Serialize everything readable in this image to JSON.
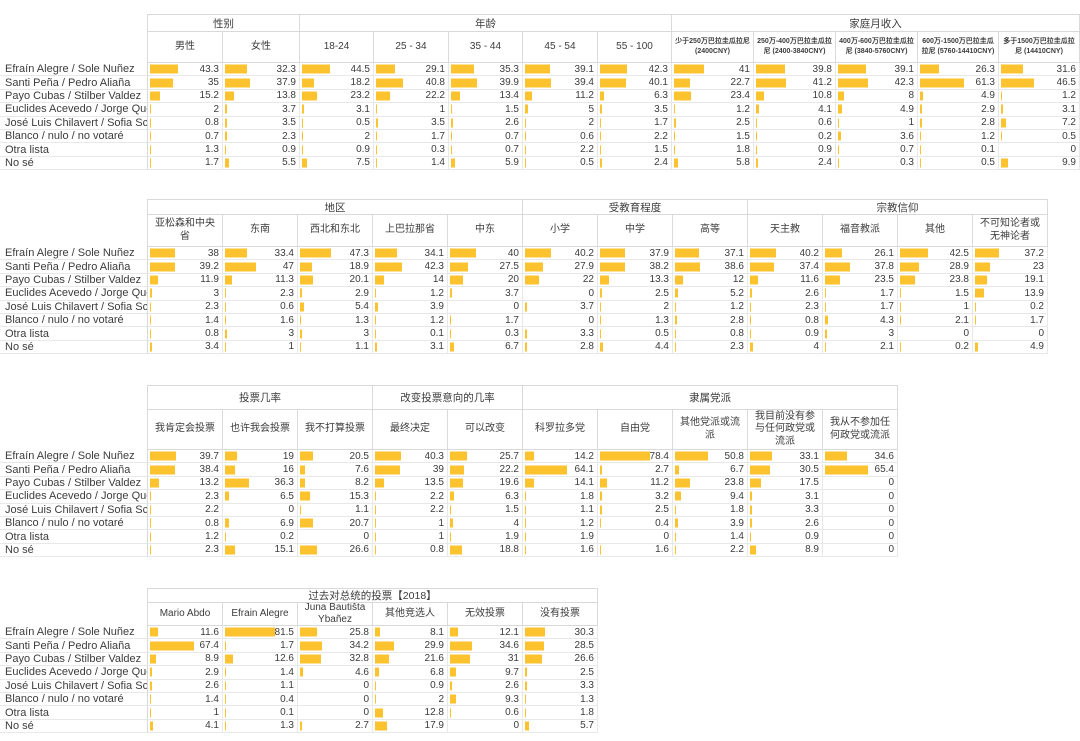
{
  "colors": {
    "bar": "#FDC32E",
    "header_grid": "#D9D9D9",
    "data_grid": "#E8E8E8",
    "text": "#3C3C3C"
  },
  "row_labels": [
    "Efraín Alegre / Sole Nuñez",
    "Santi Peña / Pedro Aliaña",
    "Payo Cubas / Stilber Valdez",
    "Euclides Acevedo / Jorge Querey",
    "José Luis Chilavert / Sofia Scheid",
    "Blanco / nulo / no votaré",
    "Otra lista",
    "No sé"
  ],
  "chart_data": [
    {
      "type": "table",
      "title": "性别 / 年龄 / 家庭月收入",
      "bar_scale_max": 100,
      "groups": [
        {
          "label": "性别",
          "columns": [
            "男性",
            "女性"
          ]
        },
        {
          "label": "年龄",
          "columns": [
            "18-24",
            "25 - 34",
            "35 - 44",
            "45 - 54",
            "55 - 100"
          ]
        },
        {
          "label": "家庭月收入",
          "columns": [
            "少于250万巴拉圭瓜拉尼 (2400CNY)",
            "250万-400万巴拉圭瓜拉尼 (2400-3840CNY)",
            "400万-600万巴拉圭瓜拉尼 (3840-5760CNY)",
            "600万-1500万巴拉圭瓜拉尼 (5760-14410CNY)",
            "多于1500万巴拉圭瓜拉尼 (14410CNY)"
          ]
        }
      ],
      "series": [
        {
          "name": "男性",
          "values": [
            43.3,
            35,
            15.2,
            2,
            0.8,
            0.7,
            1.3,
            1.7
          ]
        },
        {
          "name": "女性",
          "values": [
            32.3,
            37.9,
            13.8,
            3.7,
            3.5,
            2.3,
            0.9,
            5.5
          ]
        },
        {
          "name": "18-24",
          "values": [
            44.5,
            18.2,
            23.2,
            3.1,
            0.5,
            2,
            0.9,
            7.5
          ]
        },
        {
          "name": "25 - 34",
          "values": [
            29.1,
            40.8,
            22.2,
            1,
            3.5,
            1.7,
            0.3,
            1.4
          ]
        },
        {
          "name": "35 - 44",
          "values": [
            35.3,
            39.9,
            13.4,
            1.5,
            2.6,
            0.7,
            0.7,
            5.9
          ]
        },
        {
          "name": "45 - 54",
          "values": [
            39.1,
            39.4,
            11.2,
            5,
            2,
            0.6,
            2.2,
            0.5
          ]
        },
        {
          "name": "55 - 100",
          "values": [
            42.3,
            40.1,
            6.3,
            3.5,
            1.7,
            2.2,
            1.5,
            2.4
          ]
        },
        {
          "name": "少于250万巴拉圭瓜拉尼 (2400CNY)",
          "values": [
            41,
            22.7,
            23.4,
            1.2,
            2.5,
            1.5,
            1.8,
            5.8
          ]
        },
        {
          "name": "250万-400万巴拉圭瓜拉尼 (2400-3840CNY)",
          "values": [
            39.8,
            41.2,
            10.8,
            4.1,
            0.6,
            0.2,
            0.9,
            2.4
          ]
        },
        {
          "name": "400万-600万巴拉圭瓜拉尼 (3840-5760CNY)",
          "values": [
            39.1,
            42.3,
            8,
            4.9,
            1,
            3.6,
            0.7,
            0.3
          ]
        },
        {
          "name": "600万-1500万巴拉圭瓜拉尼 (5760-14410CNY)",
          "values": [
            26.3,
            61.3,
            4.9,
            2.9,
            2.8,
            1.2,
            0.1,
            0.5
          ]
        },
        {
          "name": "多于1500万巴拉圭瓜拉尼 (14410CNY)",
          "values": [
            31.6,
            46.5,
            1.2,
            3.1,
            7.2,
            0.5,
            0,
            9.9
          ]
        }
      ]
    },
    {
      "type": "table",
      "title": "地区 / 受教育程度 / 宗教信仰",
      "bar_scale_max": 100,
      "groups": [
        {
          "label": "地区",
          "columns": [
            "亚松森和中央省",
            "东南",
            "西北和东北",
            "上巴拉那省",
            "中东"
          ]
        },
        {
          "label": "受教育程度",
          "columns": [
            "小学",
            "中学",
            "高等"
          ]
        },
        {
          "label": "宗教信仰",
          "columns": [
            "天主教",
            "福音教派",
            "其他",
            "不可知论者或无神论者"
          ]
        }
      ],
      "series": [
        {
          "name": "亚松森和中央省",
          "values": [
            38,
            39.2,
            11.9,
            3,
            2.3,
            1.4,
            0.8,
            3.4
          ]
        },
        {
          "name": "东南",
          "values": [
            33.4,
            47,
            11.3,
            2.3,
            0.6,
            1.6,
            3,
            1
          ]
        },
        {
          "name": "西北和东北",
          "values": [
            47.3,
            18.9,
            20.1,
            2.9,
            5.4,
            1.3,
            3,
            1.1
          ]
        },
        {
          "name": "上巴拉那省",
          "values": [
            34.1,
            42.3,
            14,
            1.2,
            3.9,
            1.2,
            0.1,
            3.1
          ]
        },
        {
          "name": "中东",
          "values": [
            40,
            27.5,
            20,
            3.7,
            0,
            1.7,
            0.3,
            6.7
          ]
        },
        {
          "name": "小学",
          "values": [
            40.2,
            27.9,
            22,
            0,
            3.7,
            0,
            3.3,
            2.8
          ]
        },
        {
          "name": "中学",
          "values": [
            37.9,
            38.2,
            13.3,
            2.5,
            2,
            1.3,
            0.5,
            4.4
          ]
        },
        {
          "name": "高等",
          "values": [
            37.1,
            38.6,
            12,
            5.2,
            1.2,
            2.8,
            0.8,
            2.3
          ]
        },
        {
          "name": "天主教",
          "values": [
            40.2,
            37.4,
            11.6,
            2.6,
            2.3,
            0.8,
            0.9,
            4
          ]
        },
        {
          "name": "福音教派",
          "values": [
            26.1,
            37.8,
            23.5,
            1.7,
            1.7,
            4.3,
            3,
            2.1
          ]
        },
        {
          "name": "其他",
          "values": [
            42.5,
            28.9,
            23.8,
            1.5,
            1,
            2.1,
            0,
            0.2
          ]
        },
        {
          "name": "不可知论者或无神论者",
          "values": [
            37.2,
            23,
            19.1,
            13.9,
            0.2,
            1.7,
            0,
            4.9
          ]
        }
      ]
    },
    {
      "type": "table",
      "title": "投票几率 / 改变投票意向的几率 / 隶属党派",
      "bar_scale_max": 100,
      "groups": [
        {
          "label": "投票几率",
          "columns": [
            "我肯定会投票",
            "也许我会投票",
            "我不打算投票"
          ]
        },
        {
          "label": "改变投票意向的几率",
          "columns": [
            "最终决定",
            "可以改变"
          ]
        },
        {
          "label": "隶属党派",
          "columns": [
            "科罗拉多党",
            "自由党",
            "其他党派或流派",
            "我目前没有参与任何政党或流派",
            "我从不参加任何政党或流派"
          ]
        }
      ],
      "series": [
        {
          "name": "我肯定会投票",
          "values": [
            39.7,
            38.4,
            13.2,
            2.3,
            2.2,
            0.8,
            1.2,
            2.3
          ]
        },
        {
          "name": "也许我会投票",
          "values": [
            19,
            16,
            36.3,
            6.5,
            0,
            6.9,
            0.2,
            15.1
          ]
        },
        {
          "name": "我不打算投票",
          "values": [
            20.5,
            7.6,
            8.2,
            15.3,
            1.1,
            20.7,
            0,
            26.6
          ]
        },
        {
          "name": "最终决定",
          "values": [
            40.3,
            39,
            13.5,
            2.2,
            2.2,
            1,
            1,
            0.8
          ]
        },
        {
          "name": "可以改变",
          "values": [
            25.7,
            22.2,
            19.6,
            6.3,
            1.5,
            4,
            1.9,
            18.8
          ]
        },
        {
          "name": "科罗拉多党",
          "values": [
            14.2,
            64.1,
            14.1,
            1.8,
            1.1,
            1.2,
            1.9,
            1.6
          ]
        },
        {
          "name": "自由党",
          "values": [
            78.4,
            2.7,
            11.2,
            3.2,
            2.5,
            0.4,
            0,
            1.6
          ]
        },
        {
          "name": "其他党派或流派",
          "values": [
            50.8,
            6.7,
            23.8,
            9.4,
            1.8,
            3.9,
            1.4,
            2.2
          ]
        },
        {
          "name": "我目前没有参与任何政党或流派",
          "values": [
            33.1,
            30.5,
            17.5,
            3.1,
            3.3,
            2.6,
            0.9,
            8.9
          ]
        },
        {
          "name": "我从不参加任何政党或流派",
          "values": [
            34.6,
            65.4,
            0,
            0,
            0,
            0,
            0,
            0
          ]
        }
      ]
    },
    {
      "type": "table",
      "title": "过去对总统的投票【2018】",
      "bar_scale_max": 100,
      "groups": [
        {
          "label": "过去对总统的投票【2018】",
          "columns": [
            "Mario Abdo",
            "Efrain Alegre",
            "Juna Bautišta Ybañez",
            "其他竞选人",
            "无效投票",
            "没有投票"
          ]
        }
      ],
      "series": [
        {
          "name": "Mario Abdo",
          "values": [
            11.6,
            67.4,
            8.9,
            2.9,
            2.6,
            1.4,
            1,
            4.1
          ]
        },
        {
          "name": "Efrain Alegre",
          "values": [
            81.5,
            1.7,
            12.6,
            1.4,
            1.1,
            0.4,
            0.1,
            1.3
          ]
        },
        {
          "name": "Juna Bautišta Ybañez",
          "values": [
            25.8,
            34.2,
            32.8,
            4.6,
            0,
            0,
            0,
            2.7
          ]
        },
        {
          "name": "其他竞选人",
          "values": [
            8.1,
            29.9,
            21.6,
            6.8,
            0.9,
            2,
            12.8,
            17.9
          ]
        },
        {
          "name": "无效投票",
          "values": [
            12.1,
            34.6,
            31,
            9.7,
            2.6,
            9.3,
            0.6,
            0
          ]
        },
        {
          "name": "没有投票",
          "values": [
            30.3,
            28.5,
            26.6,
            2.5,
            3.3,
            1.3,
            1.8,
            5.7
          ]
        }
      ]
    }
  ]
}
